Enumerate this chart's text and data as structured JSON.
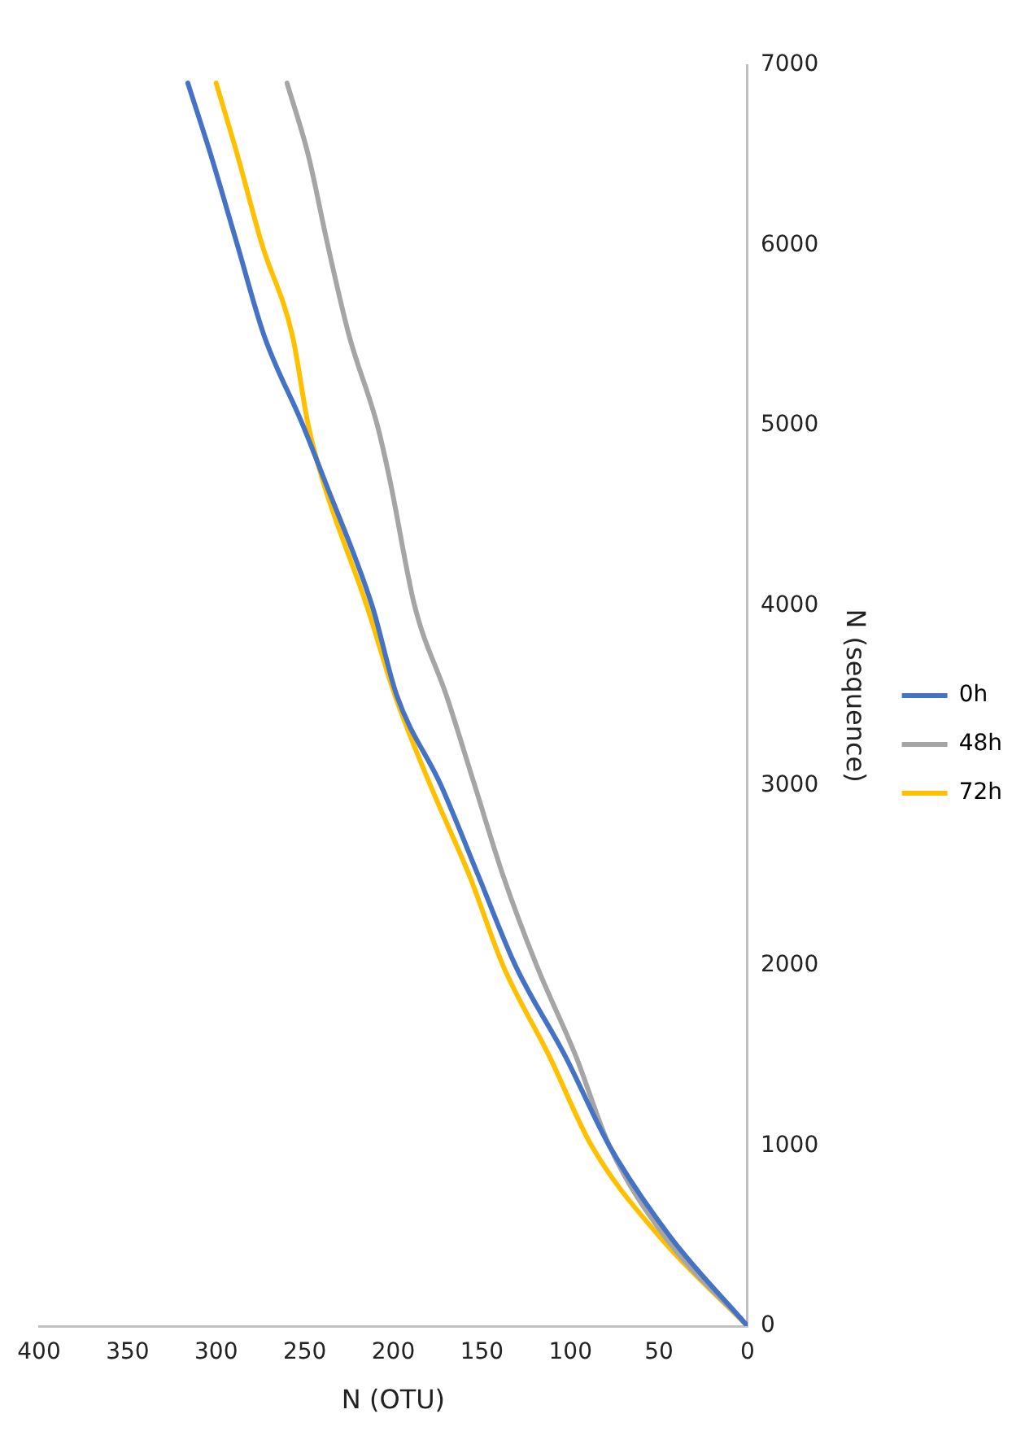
{
  "chart_data": {
    "type": "line",
    "xlabel": "N (OTU)",
    "ylabel": "N (sequence)",
    "xlim": [
      400,
      0
    ],
    "xticks": [
      0,
      50,
      100,
      150,
      200,
      250,
      300,
      350,
      400
    ],
    "ylim": [
      0,
      7000
    ],
    "yticks": [
      0,
      1000,
      2000,
      3000,
      4000,
      5000,
      6000,
      7000
    ],
    "grid": false,
    "legend": "right",
    "marker": "none",
    "line_style": "solid",
    "series": [
      {
        "name": "0h",
        "color": "#4472c4",
        "x": [
          0,
          44,
          78,
          103,
          131,
          152,
          173,
          198,
          212,
          239,
          251,
          273,
          288,
          303,
          316
        ],
        "values": [
          0,
          500,
          1000,
          1500,
          2000,
          2500,
          3000,
          3500,
          4000,
          4700,
          5000,
          5500,
          6000,
          6500,
          6900
        ]
      },
      {
        "name": "48h",
        "color": "#a5a5a5",
        "x": [
          0,
          47,
          78,
          97,
          119,
          138,
          154,
          170,
          188,
          202,
          209,
          225,
          237,
          248,
          260
        ],
        "values": [
          0,
          500,
          1000,
          1500,
          2000,
          2500,
          3000,
          3500,
          4000,
          4700,
          5000,
          5500,
          6000,
          6500,
          6900
        ]
      },
      {
        "name": "72h",
        "color": "#ffc000",
        "x": [
          0,
          50,
          88,
          112,
          138,
          157,
          179,
          199,
          215,
          240,
          248,
          257,
          274,
          288,
          300
        ],
        "values": [
          0,
          500,
          1000,
          1500,
          2000,
          2500,
          3000,
          3500,
          4000,
          4700,
          5000,
          5500,
          6000,
          6500,
          6900
        ]
      }
    ]
  }
}
